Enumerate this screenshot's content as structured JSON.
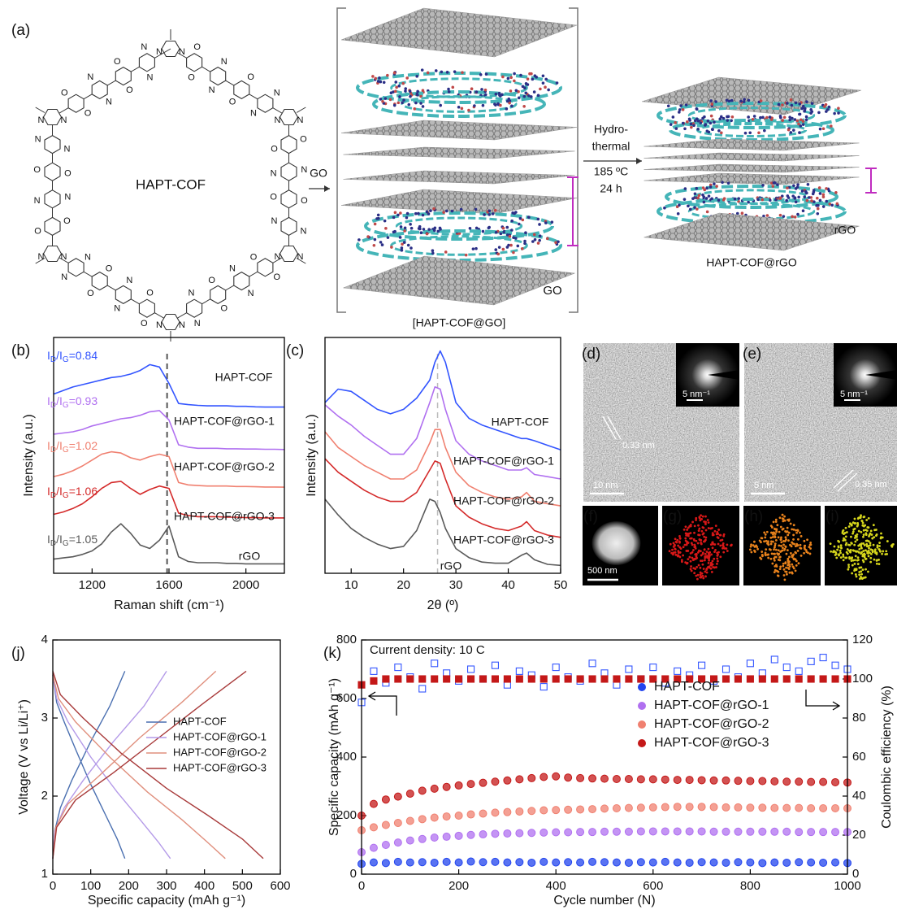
{
  "panel_a": {
    "label": "(a)",
    "cof_label": "HAPT-COF",
    "atom_n": "N",
    "atom_o": "O",
    "arrow_label": "GO",
    "bracket_label": "[HAPT-COF@GO]",
    "go_label": "GO",
    "conditions": [
      "Hydro-",
      "thermal",
      "185 ºC",
      "24 h"
    ],
    "rgo_label": "rGO",
    "product_label": "HAPT-COF@rGO"
  },
  "micrographs": {
    "d": {
      "label": "(d)",
      "scale": "10 nm",
      "inset_scale": "5 nm⁻¹",
      "spacing": "0.33 nm"
    },
    "e": {
      "label": "(e)",
      "scale": "5 nm",
      "inset_scale": "5 nm⁻¹",
      "spacing": "0.35 nm"
    },
    "f": {
      "label": "(f)",
      "scale": "500 nm"
    },
    "g": {
      "label": "(g)"
    },
    "h": {
      "label": "(h)"
    },
    "i": {
      "label": "(i)"
    }
  },
  "chart_data": [
    {
      "type": "line",
      "panel": "(b)",
      "xlabel": "Raman shift (cm⁻¹)",
      "ylabel": "Intensity (a.u.)",
      "xlim": [
        1000,
        2200
      ],
      "xticks": [
        1200,
        1600,
        2000
      ],
      "ylim": [
        0,
        10
      ],
      "ref_line_x": 1590,
      "x": [
        1000,
        1050,
        1100,
        1150,
        1200,
        1250,
        1300,
        1350,
        1400,
        1450,
        1500,
        1550,
        1600,
        1650,
        1700,
        1750,
        1800,
        1850,
        1900,
        1950,
        2000,
        2050,
        2100,
        2150,
        2200
      ],
      "series": [
        {
          "name": "HAPT-COF",
          "color": "#3355ff",
          "values": [
            7.6,
            7.75,
            7.9,
            8.0,
            8.1,
            8.2,
            8.3,
            8.35,
            8.45,
            8.6,
            8.85,
            8.75,
            8.05,
            7.2,
            7.15,
            7.12,
            7.1,
            7.1,
            7.1,
            7.08,
            7.08,
            7.06,
            7.05,
            7.05,
            7.05
          ]
        },
        {
          "name": "HAPT-COF@rGO-1",
          "color": "#b070f0",
          "values": [
            5.9,
            5.95,
            6.0,
            6.1,
            6.25,
            6.35,
            6.45,
            6.55,
            6.6,
            6.7,
            6.85,
            6.9,
            6.5,
            5.45,
            5.35,
            5.3,
            5.3,
            5.3,
            5.28,
            5.28,
            5.27,
            5.27,
            5.26,
            5.26,
            5.25
          ]
        },
        {
          "name": "HAPT-COF@rGO-2",
          "color": "#f08070",
          "values": [
            4.1,
            4.2,
            4.35,
            4.55,
            4.8,
            5.05,
            5.15,
            5.1,
            4.9,
            4.8,
            4.95,
            5.05,
            4.95,
            3.85,
            3.75,
            3.72,
            3.7,
            3.7,
            3.7,
            3.68,
            3.68,
            3.67,
            3.66,
            3.66,
            3.65
          ]
        },
        {
          "name": "HAPT-COF@rGO-3",
          "color": "#d42a2a",
          "values": [
            2.5,
            2.6,
            2.75,
            2.95,
            3.25,
            3.6,
            3.85,
            3.9,
            3.6,
            3.35,
            3.55,
            3.7,
            3.6,
            2.55,
            2.45,
            2.4,
            2.4,
            2.4,
            2.38,
            2.38,
            2.36,
            2.36,
            2.35,
            2.35,
            2.35
          ]
        },
        {
          "name": "rGO",
          "color": "#5a5a5a",
          "values": [
            0.6,
            0.65,
            0.7,
            0.8,
            0.95,
            1.25,
            1.75,
            2.1,
            1.7,
            1.2,
            1.05,
            1.4,
            2.0,
            0.7,
            0.5,
            0.45,
            0.45,
            0.45,
            0.42,
            0.42,
            0.4,
            0.4,
            0.4,
            0.4,
            0.4
          ]
        }
      ],
      "ratio_labels": [
        [
          "I",
          "D",
          "/I",
          "G",
          "=0.84"
        ],
        [
          "I",
          "D",
          "/I",
          "G",
          "=0.93"
        ],
        [
          "I",
          "D",
          "/I",
          "G",
          "=1.02"
        ],
        [
          "I",
          "D",
          "/I",
          "G",
          "=1.06"
        ],
        [
          "I",
          "D",
          "/I",
          "G",
          "=1.05"
        ]
      ]
    },
    {
      "type": "line",
      "panel": "(c)",
      "xlabel": "2θ (º)",
      "ylabel": "Intensity (a.u.)",
      "xlim": [
        5,
        50
      ],
      "xticks": [
        10,
        20,
        30,
        40,
        50
      ],
      "ylim": [
        0,
        10.5
      ],
      "ref_line_x": 26.5,
      "x": [
        5,
        7.5,
        10,
        12.5,
        15,
        17.5,
        20,
        22.5,
        25,
        26,
        27,
        28,
        30,
        32.5,
        35,
        37.5,
        40,
        42.5,
        43.5,
        45,
        47.5,
        50
      ],
      "series": [
        {
          "name": "HAPT-COF",
          "color": "#3355ff",
          "values": [
            7.6,
            8.2,
            8.1,
            7.7,
            7.3,
            7.1,
            7.3,
            7.8,
            8.6,
            9.4,
            9.9,
            9.4,
            7.6,
            6.9,
            6.6,
            6.4,
            6.2,
            6.0,
            6.0,
            5.9,
            5.7,
            5.5
          ]
        },
        {
          "name": "HAPT-COF@rGO-1",
          "color": "#b070f0",
          "values": [
            7.5,
            7.0,
            6.6,
            6.1,
            5.7,
            5.3,
            5.3,
            6.0,
            7.6,
            8.3,
            8.2,
            7.3,
            5.9,
            5.3,
            5.0,
            4.8,
            4.6,
            4.6,
            4.7,
            4.4,
            4.3,
            4.2
          ]
        },
        {
          "name": "HAPT-COF@rGO-2",
          "color": "#f08070",
          "values": [
            6.3,
            5.6,
            5.2,
            4.8,
            4.5,
            4.2,
            4.2,
            4.6,
            5.8,
            6.4,
            6.4,
            5.6,
            4.5,
            3.9,
            3.6,
            3.4,
            3.3,
            3.4,
            3.6,
            3.2,
            3.1,
            3.0
          ]
        },
        {
          "name": "HAPT-COF@rGO-3",
          "color": "#d42a2a",
          "values": [
            5.1,
            4.5,
            4.1,
            3.7,
            3.4,
            3.2,
            3.2,
            3.6,
            4.6,
            5.0,
            4.9,
            4.2,
            3.0,
            2.5,
            2.2,
            2.0,
            1.9,
            2.1,
            2.3,
            1.9,
            1.7,
            1.6
          ]
        },
        {
          "name": "rGO",
          "color": "#5a5a5a",
          "values": [
            3.3,
            2.6,
            2.0,
            1.6,
            1.3,
            1.1,
            1.2,
            1.9,
            3.3,
            3.2,
            2.7,
            2.0,
            1.1,
            0.7,
            0.5,
            0.45,
            0.45,
            0.8,
            0.9,
            0.6,
            0.4,
            0.35
          ]
        }
      ]
    },
    {
      "type": "line",
      "panel": "(j)",
      "xlabel": "Specific capacity (mAh g⁻¹)",
      "ylabel": "Voltage (V vs Li/Li⁺)",
      "xlim": [
        0,
        600
      ],
      "xticks": [
        0,
        100,
        200,
        300,
        400,
        500,
        600
      ],
      "ylim": [
        1,
        4
      ],
      "yticks": [
        1,
        2,
        3,
        4
      ],
      "legend": "right",
      "series": [
        {
          "name": "HAPT-COF",
          "color": "#4a6fb0",
          "x": [
            0,
            10,
            30,
            60,
            100,
            140,
            170,
            190,
            null,
            0,
            5,
            20,
            50,
            100,
            150,
            190
          ],
          "values": [
            3.55,
            3.2,
            2.95,
            2.6,
            2.15,
            1.75,
            1.45,
            1.2,
            null,
            1.2,
            1.55,
            1.85,
            2.2,
            2.7,
            3.15,
            3.6
          ]
        },
        {
          "name": "HAPT-COF@rGO-1",
          "color": "#b49ae8",
          "x": [
            0,
            10,
            40,
            100,
            170,
            230,
            280,
            310,
            null,
            0,
            5,
            30,
            80,
            160,
            240,
            300
          ],
          "values": [
            3.55,
            3.25,
            2.95,
            2.5,
            2.05,
            1.7,
            1.4,
            1.2,
            null,
            1.2,
            1.55,
            1.85,
            2.2,
            2.7,
            3.15,
            3.6
          ]
        },
        {
          "name": "HAPT-COF@rGO-2",
          "color": "#e0907e",
          "x": [
            0,
            15,
            60,
            150,
            250,
            340,
            410,
            455,
            null,
            0,
            8,
            40,
            120,
            230,
            340,
            430
          ],
          "values": [
            3.55,
            3.25,
            2.95,
            2.5,
            2.05,
            1.7,
            1.4,
            1.2,
            null,
            1.2,
            1.6,
            1.9,
            2.25,
            2.75,
            3.2,
            3.6
          ]
        },
        {
          "name": "HAPT-COF@rGO-3",
          "color": "#a83a3a",
          "x": [
            0,
            20,
            80,
            180,
            300,
            410,
            500,
            555,
            null,
            0,
            10,
            60,
            160,
            280,
            400,
            510
          ],
          "values": [
            3.6,
            3.3,
            3.0,
            2.55,
            2.1,
            1.75,
            1.45,
            1.2,
            null,
            1.2,
            1.6,
            1.95,
            2.3,
            2.75,
            3.2,
            3.6
          ]
        }
      ]
    },
    {
      "type": "scatter",
      "panel": "(k)",
      "xlabel": "Cycle number (N)",
      "ylabel": "Specific capacity (mAh g⁻¹)",
      "y2label": "Coulombic efficiency (%)",
      "annotation": "Current density: 10 C",
      "xlim": [
        0,
        1000
      ],
      "xticks": [
        0,
        200,
        400,
        600,
        800,
        1000
      ],
      "ylim": [
        0,
        800
      ],
      "yticks": [
        0,
        200,
        400,
        600,
        800
      ],
      "y2lim": [
        0,
        120
      ],
      "y2ticks": [
        0,
        20,
        40,
        60,
        80,
        100,
        120
      ],
      "legend": "right",
      "x": [
        0,
        25,
        50,
        75,
        100,
        125,
        150,
        175,
        200,
        225,
        250,
        275,
        300,
        325,
        350,
        375,
        400,
        425,
        450,
        475,
        500,
        525,
        550,
        575,
        600,
        625,
        650,
        675,
        700,
        725,
        750,
        775,
        800,
        825,
        850,
        875,
        900,
        925,
        950,
        975,
        1000
      ],
      "series": [
        {
          "axis": "y2",
          "color": "#3355ff",
          "values": [
            88,
            104,
            98,
            106,
            101,
            95,
            108,
            103,
            99,
            105,
            100,
            107,
            97,
            104,
            102,
            96,
            106,
            101,
            99,
            108,
            103,
            97,
            105,
            100,
            106,
            98,
            104,
            102,
            107,
            99,
            105,
            101,
            108,
            103,
            110,
            106,
            104,
            109,
            111,
            107,
            105
          ]
        },
        {
          "axis": "y2",
          "color": "#c41818",
          "values": [
            97,
            99,
            100,
            100,
            100,
            100,
            100,
            100,
            100,
            100,
            100,
            100,
            100,
            100,
            100,
            100,
            100,
            100,
            100,
            100,
            100,
            100,
            100,
            100,
            100,
            100,
            100,
            100,
            100,
            100,
            100,
            100,
            100,
            100,
            100,
            100,
            100,
            100,
            100,
            100,
            100
          ]
        },
        {
          "name": "HAPT-COF",
          "color": "#2244ee",
          "values": [
            35,
            40,
            38,
            42,
            40,
            41,
            39,
            42,
            40,
            43,
            41,
            42,
            40,
            41,
            39,
            42,
            40,
            41,
            40,
            42,
            41,
            40,
            39,
            41,
            40,
            42,
            40,
            39,
            41,
            40,
            39,
            41,
            40,
            38,
            40,
            39,
            41,
            40,
            39,
            40,
            38
          ]
        },
        {
          "name": "HAPT-COF@rGO-1",
          "color": "#b070f0",
          "values": [
            75,
            90,
            100,
            108,
            115,
            120,
            125,
            128,
            131,
            134,
            136,
            138,
            139,
            140,
            141,
            142,
            143,
            143,
            144,
            144,
            145,
            145,
            145,
            146,
            146,
            146,
            146,
            146,
            146,
            145,
            145,
            145,
            145,
            145,
            145,
            145,
            144,
            144,
            144,
            144,
            144
          ]
        },
        {
          "name": "HAPT-COF@rGO-2",
          "color": "#f08070",
          "values": [
            150,
            160,
            168,
            175,
            182,
            188,
            193,
            197,
            200,
            204,
            207,
            210,
            212,
            214,
            216,
            218,
            219,
            220,
            221,
            222,
            224,
            225,
            226,
            227,
            228,
            229,
            230,
            230,
            230,
            229,
            228,
            228,
            227,
            227,
            226,
            226,
            226,
            225,
            225,
            225,
            225
          ]
        },
        {
          "name": "HAPT-COF@rGO-3",
          "color": "#c41818",
          "values": [
            200,
            240,
            255,
            265,
            275,
            285,
            292,
            298,
            303,
            308,
            312,
            316,
            320,
            324,
            328,
            332,
            334,
            330,
            328,
            327,
            326,
            325,
            325,
            324,
            324,
            323,
            322,
            322,
            321,
            320,
            320,
            319,
            318,
            318,
            317,
            316,
            316,
            315,
            315,
            314,
            313
          ]
        }
      ]
    }
  ]
}
